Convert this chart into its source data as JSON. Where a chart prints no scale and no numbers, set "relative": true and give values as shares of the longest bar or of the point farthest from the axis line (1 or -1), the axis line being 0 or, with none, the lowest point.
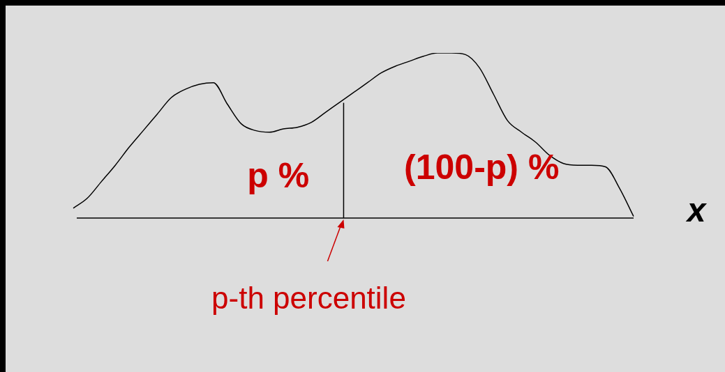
{
  "chart_data": {
    "type": "line",
    "relative": true,
    "xlabel": "x",
    "color": "#000000",
    "marker": "none",
    "legend": false,
    "categories": [
      null,
      null,
      null,
      null,
      null,
      null,
      null,
      null,
      null,
      null,
      null,
      null,
      null,
      null,
      null,
      null,
      null,
      null,
      null,
      null,
      null,
      null,
      null,
      null,
      null,
      null,
      null,
      null,
      null,
      null,
      null,
      null,
      null,
      null,
      null,
      null,
      null,
      null,
      null,
      null,
      null
    ],
    "values": [
      0.06,
      0.12,
      0.22,
      0.32,
      0.43,
      0.53,
      0.63,
      0.73,
      0.78,
      0.81,
      0.82,
      0.69,
      0.57,
      0.53,
      0.52,
      0.54,
      0.55,
      0.58,
      0.64,
      0.7,
      0.76,
      0.82,
      0.88,
      0.92,
      0.95,
      0.98,
      1.0,
      1.0,
      0.99,
      0.91,
      0.75,
      0.59,
      0.52,
      0.46,
      0.38,
      0.33,
      0.32,
      0.32,
      0.31,
      0.18,
      0.01
    ],
    "annotations": [
      "p %",
      "(100-p) %",
      "p-th percentile"
    ]
  }
}
